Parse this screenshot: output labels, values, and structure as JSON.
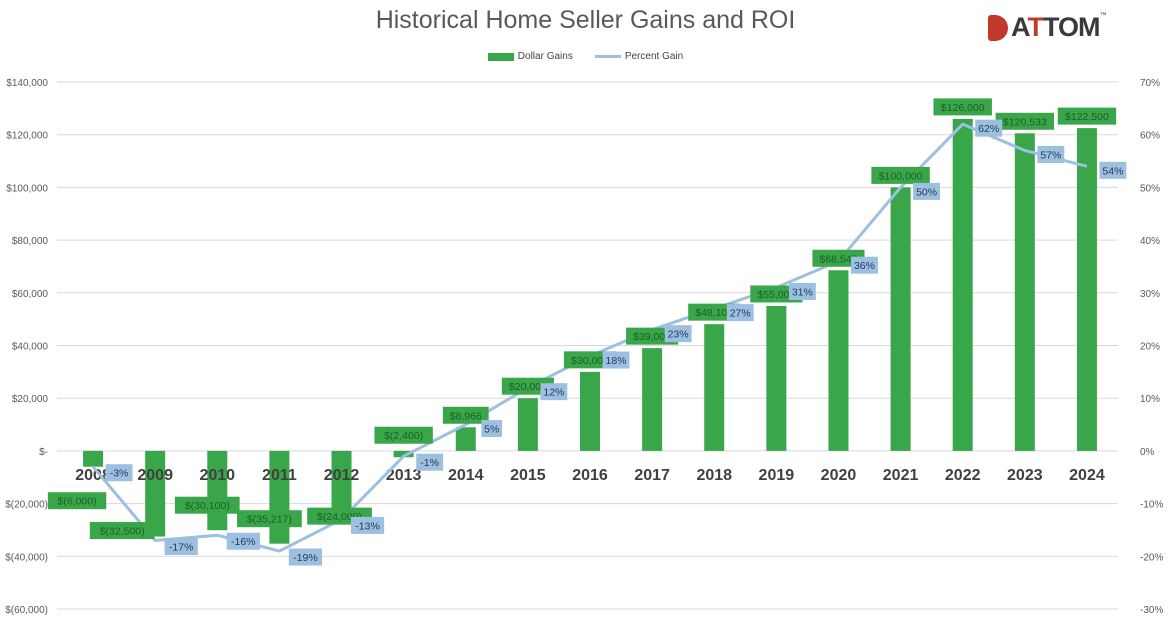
{
  "chart_data": {
    "type": "bar",
    "title": "Historical Home Seller Gains and ROI",
    "categories": [
      "2008",
      "2009",
      "2010",
      "2011",
      "2012",
      "2013",
      "2014",
      "2015",
      "2016",
      "2017",
      "2018",
      "2019",
      "2020",
      "2021",
      "2022",
      "2023",
      "2024"
    ],
    "series": [
      {
        "name": "Dollar Gains",
        "type": "bar",
        "axis": "left",
        "color": "#3aa64a",
        "values": [
          -6000,
          -32500,
          -30100,
          -35217,
          -24000,
          -2400,
          8966,
          20000,
          30000,
          39000,
          48100,
          55000,
          68547,
          100000,
          126000,
          120533,
          122500
        ],
        "labels": [
          "$(6,000)",
          "$(32,500)",
          "$(30,100)",
          "$(35,217)",
          "$(24,000)",
          "$(2,400)",
          "$8,966",
          "$20,000",
          "$30,000",
          "$39,000",
          "$48,100",
          "$55,000",
          "$68,547",
          "$100,000",
          "$126,000",
          "$120,533",
          "$122,500"
        ]
      },
      {
        "name": "Percent Gain",
        "type": "line",
        "axis": "right",
        "color": "#9dbfe0",
        "values": [
          -3,
          -17,
          -16,
          -19,
          -13,
          -1,
          5,
          12,
          18,
          23,
          27,
          31,
          36,
          50,
          62,
          57,
          54
        ],
        "labels": [
          "-3%",
          "-17%",
          "-16%",
          "-19%",
          "-13%",
          "-1%",
          "5%",
          "12%",
          "18%",
          "23%",
          "27%",
          "31%",
          "36%",
          "50%",
          "62%",
          "57%",
          "54%"
        ]
      }
    ],
    "left_axis": {
      "ylim": [
        -60000,
        140000
      ],
      "ticks": [
        "$140,000",
        "$120,000",
        "$100,000",
        "$80,000",
        "$60,000",
        "$40,000",
        "$20,000",
        "$-",
        "$(20,000)",
        "$(40,000)",
        "$(60,000)"
      ]
    },
    "right_axis": {
      "ylim": [
        -30,
        70
      ],
      "ticks": [
        "70%",
        "60%",
        "50%",
        "40%",
        "30%",
        "20%",
        "10%",
        "0%",
        "-10%",
        "-20%",
        "-30%"
      ]
    },
    "grid": true,
    "legend": "top"
  },
  "logo": {
    "text": "ATTOM",
    "tm": "™"
  }
}
